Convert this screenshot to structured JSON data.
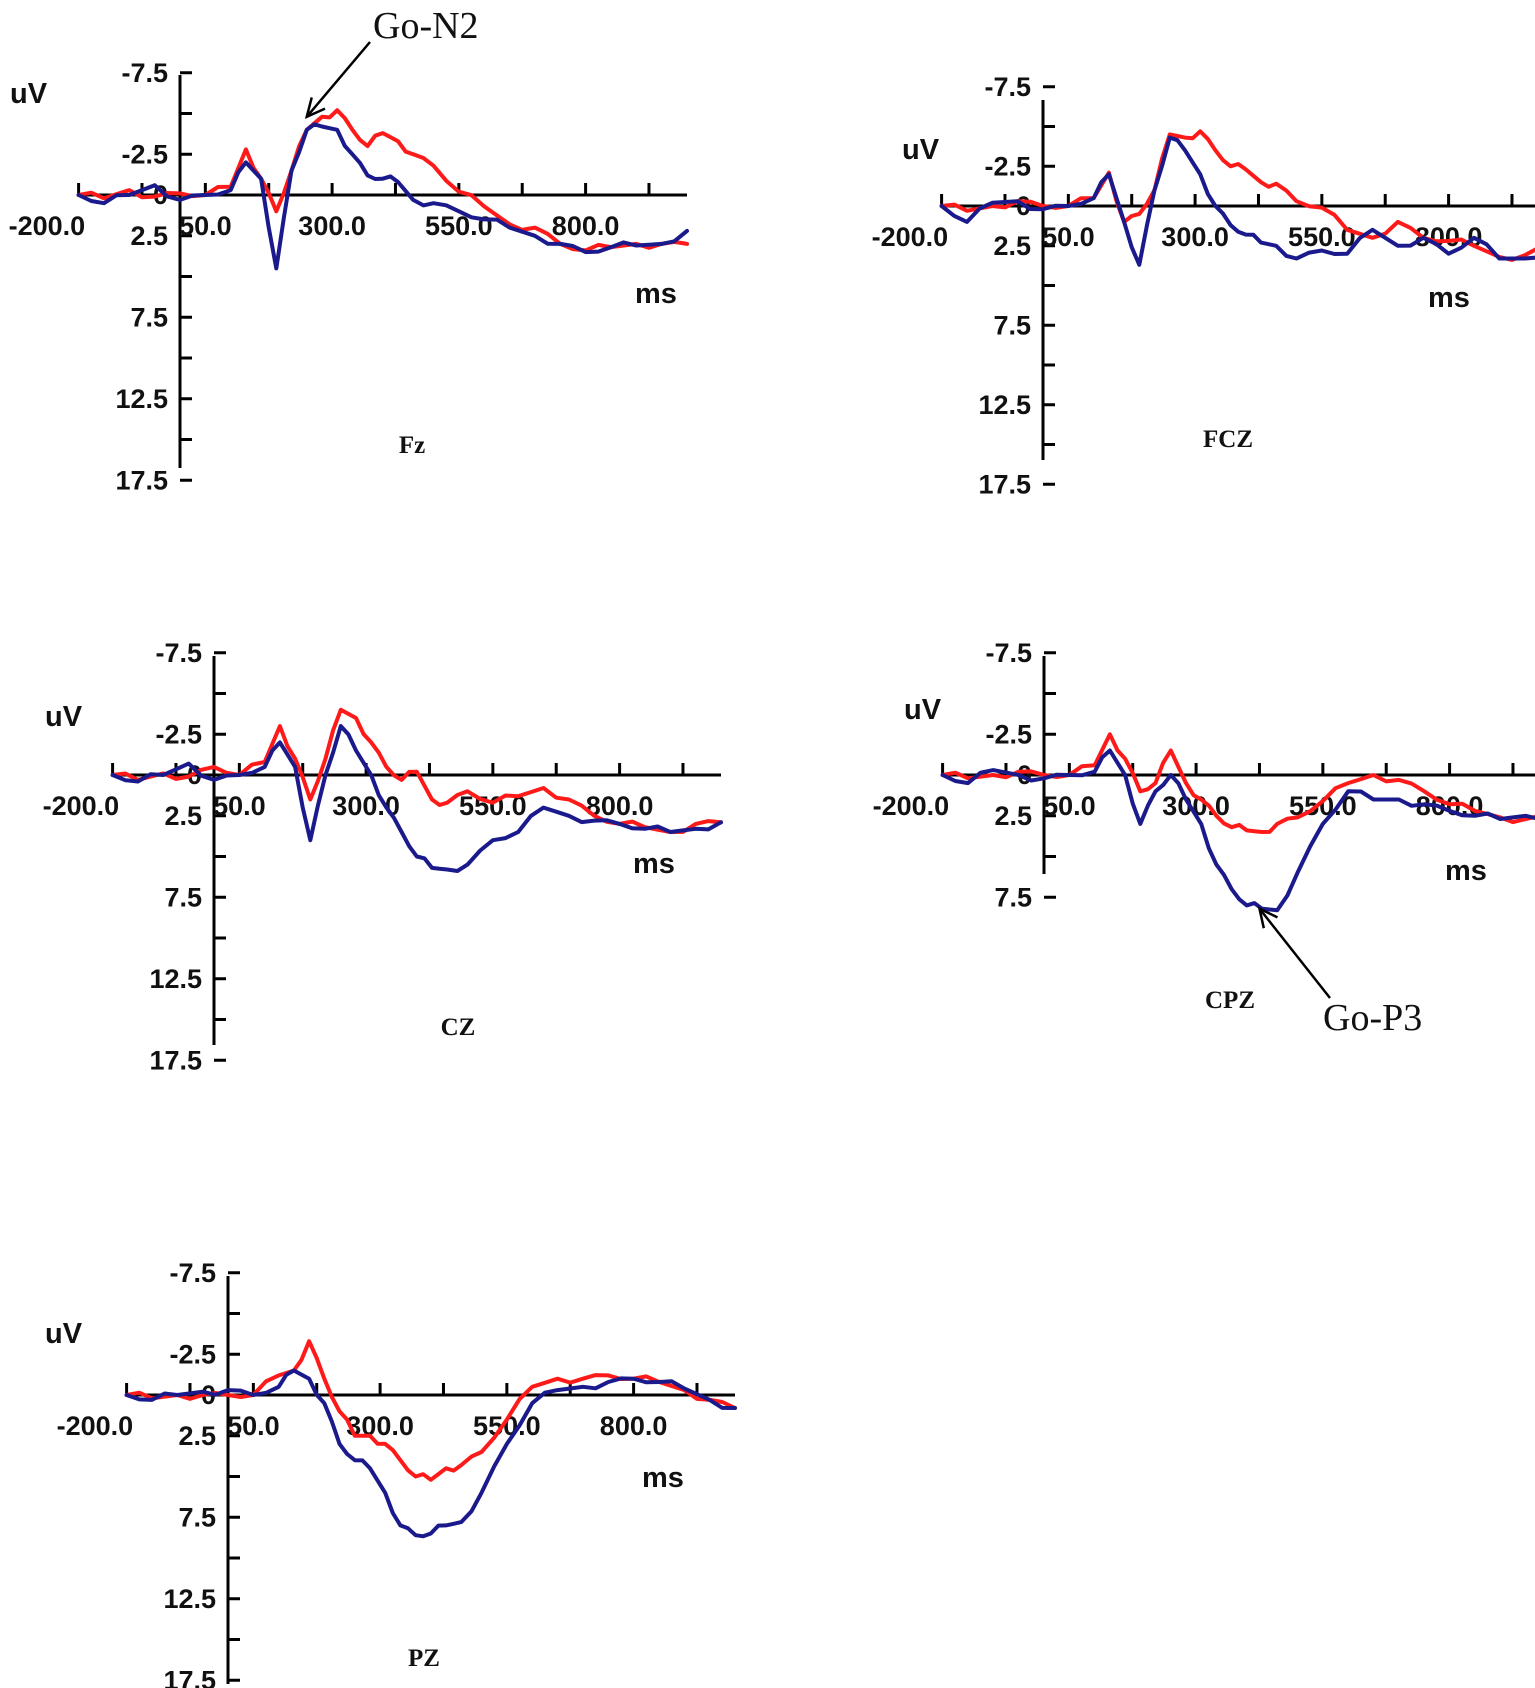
{
  "chart_data": [
    {
      "type": "line",
      "title": "Fz",
      "xlabel": "ms",
      "ylabel": "uV",
      "xlim": [
        -200,
        1000
      ],
      "ylim": [
        17.5,
        -7.5
      ],
      "x_ticks": [
        "-200.0",
        "50.0",
        "300.0",
        "550.0",
        "800.0"
      ],
      "x_tick_values": [
        -200,
        50,
        300,
        550,
        800
      ],
      "y_ticks": [
        "-7.5",
        "-2.5",
        "0",
        "2.5",
        "7.5",
        "12.5",
        "17.5"
      ],
      "y_tick_values": [
        -7.5,
        -2.5,
        0,
        2.5,
        7.5,
        12.5,
        17.5
      ],
      "annotation": {
        "text": "Go-N2",
        "x": 250,
        "y": -4.8
      },
      "colors": {
        "red": "#ff1a1a",
        "blue": "#1a1a8c"
      },
      "series": [
        {
          "color": "red",
          "x": [
            -200,
            -150,
            -100,
            -50,
            0,
            50,
            100,
            130,
            160,
            190,
            220,
            250,
            280,
            310,
            340,
            370,
            400,
            430,
            460,
            500,
            550,
            600,
            650,
            700,
            750,
            800,
            850,
            900,
            950,
            1000
          ],
          "y": [
            0,
            0.2,
            -0.3,
            0.1,
            -0.1,
            0,
            -0.5,
            -2.8,
            -1,
            1,
            -1.5,
            -4,
            -4.8,
            -5.2,
            -4,
            -3,
            -3.8,
            -3.3,
            -2.5,
            -1.8,
            -0.2,
            0.7,
            1.8,
            2,
            3,
            3.4,
            3.2,
            3,
            3,
            3
          ]
        },
        {
          "color": "blue",
          "x": [
            -200,
            -150,
            -100,
            -50,
            0,
            50,
            100,
            130,
            160,
            190,
            220,
            250,
            280,
            310,
            340,
            370,
            400,
            430,
            460,
            500,
            550,
            600,
            650,
            700,
            750,
            800,
            850,
            900,
            950,
            1000
          ],
          "y": [
            0,
            0.5,
            0,
            -0.6,
            0.3,
            0,
            -0.3,
            -2,
            -1,
            4.5,
            -1.5,
            -4,
            -4.2,
            -4,
            -2.5,
            -1.2,
            -1,
            -0.8,
            0.3,
            0.5,
            1,
            1.5,
            2,
            2.5,
            3,
            3.5,
            3.2,
            3.1,
            3,
            2.2
          ]
        }
      ]
    },
    {
      "type": "line",
      "title": "FCZ",
      "xlabel": "ms",
      "ylabel": "uV",
      "xlim": [
        -200,
        1000
      ],
      "ylim": [
        17.5,
        -7.5
      ],
      "x_ticks": [
        "-200.0",
        "50.0",
        "300.0",
        "550.0",
        "800.0"
      ],
      "x_tick_values": [
        -200,
        50,
        300,
        550,
        800
      ],
      "y_ticks": [
        "-7.5",
        "-2.5",
        "0",
        "2.5",
        "7.5",
        "12.5",
        "17.5"
      ],
      "y_tick_values": [
        -7.5,
        -2.5,
        0,
        2.5,
        7.5,
        12.5,
        17.5
      ],
      "colors": {
        "red": "#ff1a1a",
        "blue": "#1a1a8c"
      },
      "series": [
        {
          "color": "red",
          "x": [
            -200,
            -150,
            -100,
            -50,
            0,
            50,
            100,
            130,
            160,
            190,
            220,
            250,
            280,
            310,
            340,
            370,
            400,
            430,
            460,
            500,
            550,
            600,
            650,
            700,
            750,
            800,
            850,
            900,
            950,
            1000
          ],
          "y": [
            0,
            0.3,
            0,
            -0.3,
            0,
            0,
            -0.5,
            -2.1,
            1,
            0.5,
            -1,
            -4.5,
            -4.3,
            -4.7,
            -3.5,
            -2.5,
            -2.3,
            -1.5,
            -1.4,
            -0.3,
            0.1,
            1.5,
            2,
            1,
            2,
            2.2,
            2.5,
            3.2,
            3.1,
            2.5
          ]
        },
        {
          "color": "blue",
          "x": [
            -200,
            -150,
            -100,
            -50,
            0,
            50,
            100,
            130,
            160,
            190,
            220,
            250,
            280,
            310,
            340,
            370,
            400,
            430,
            460,
            500,
            550,
            600,
            650,
            700,
            750,
            800,
            850,
            900,
            950,
            1000
          ],
          "y": [
            0,
            1,
            -0.2,
            -0.3,
            0.2,
            0,
            -0.5,
            -2,
            1,
            3.7,
            -1,
            -4.3,
            -3.5,
            -2,
            0,
            1.2,
            1.8,
            2.3,
            2.5,
            3.3,
            2.8,
            3,
            1.5,
            2.5,
            2,
            3,
            2,
            3.3,
            3.3,
            2.7
          ]
        }
      ]
    },
    {
      "type": "line",
      "title": "CZ",
      "xlabel": "ms",
      "ylabel": "uV",
      "xlim": [
        -200,
        1000
      ],
      "ylim": [
        17.5,
        -7.5
      ],
      "x_ticks": [
        "-200.0",
        "50.0",
        "300.0",
        "550.0",
        "800.0"
      ],
      "x_tick_values": [
        -200,
        50,
        300,
        550,
        800
      ],
      "y_ticks": [
        "-7.5",
        "-2.5",
        "0",
        "2.5",
        "7.5",
        "12.5",
        "17.5"
      ],
      "y_tick_values": [
        -7.5,
        -2.5,
        0,
        2.5,
        7.5,
        12.5,
        17.5
      ],
      "colors": {
        "red": "#ff1a1a",
        "blue": "#1a1a8c"
      },
      "series": [
        {
          "color": "red",
          "x": [
            -200,
            -150,
            -100,
            -50,
            0,
            50,
            100,
            130,
            160,
            190,
            220,
            250,
            280,
            310,
            340,
            370,
            400,
            430,
            460,
            500,
            550,
            600,
            650,
            700,
            750,
            800,
            850,
            900,
            950,
            1000
          ],
          "y": [
            0,
            0.3,
            -0.1,
            0.1,
            -0.5,
            0,
            -0.8,
            -3,
            -1,
            1.5,
            -1,
            -4,
            -3.5,
            -2,
            -0.5,
            0.3,
            -0.2,
            1.5,
            1.7,
            1,
            1.7,
            1.3,
            0.8,
            1.5,
            2.5,
            3,
            3.2,
            3.5,
            3,
            2.9
          ]
        },
        {
          "color": "blue",
          "x": [
            -200,
            -150,
            -100,
            -50,
            0,
            50,
            100,
            130,
            160,
            190,
            220,
            250,
            280,
            310,
            340,
            370,
            400,
            430,
            460,
            500,
            550,
            600,
            650,
            700,
            750,
            800,
            850,
            900,
            950,
            1000
          ],
          "y": [
            0,
            0.4,
            0,
            -0.7,
            0.3,
            0,
            -0.5,
            -2,
            -0.5,
            4,
            0,
            -3,
            -1.5,
            0,
            2,
            3.5,
            5,
            5.7,
            5.8,
            5.5,
            4,
            3.5,
            2,
            2.5,
            2.8,
            3,
            3.3,
            3.5,
            3.3,
            2.9
          ]
        }
      ]
    },
    {
      "type": "line",
      "title": "CPZ",
      "xlabel": "ms",
      "ylabel": "uV",
      "xlim": [
        -200,
        1000
      ],
      "ylim": [
        17.5,
        -7.5
      ],
      "x_ticks": [
        "-200.0",
        "50.0",
        "300.0",
        "550.0",
        "800.0"
      ],
      "x_tick_values": [
        -200,
        50,
        300,
        550,
        800
      ],
      "y_ticks": [
        "-7.5",
        "-2.5",
        "0",
        "2.5",
        "7.5"
      ],
      "y_tick_values": [
        -7.5,
        -2.5,
        0,
        2.5,
        7.5
      ],
      "annotation": {
        "text": "Go-P3",
        "x": 425,
        "y": 8.2
      },
      "colors": {
        "red": "#ff1a1a",
        "blue": "#1a1a8c"
      },
      "series": [
        {
          "color": "red",
          "x": [
            -200,
            -150,
            -100,
            -50,
            0,
            50,
            100,
            130,
            160,
            190,
            220,
            250,
            280,
            310,
            340,
            370,
            400,
            430,
            460,
            500,
            550,
            600,
            650,
            700,
            750,
            800,
            850,
            900,
            950,
            1000
          ],
          "y": [
            0,
            0.2,
            0,
            -0.2,
            0,
            0,
            -0.6,
            -2.5,
            -1,
            1,
            0.5,
            -1.5,
            0.5,
            1.5,
            2.5,
            3.2,
            3.4,
            3.5,
            3,
            2.6,
            1.6,
            0.5,
            0,
            0.3,
            1,
            1.8,
            2.2,
            2.6,
            2.7,
            2.6
          ]
        },
        {
          "color": "blue",
          "x": [
            -200,
            -150,
            -100,
            -50,
            0,
            50,
            100,
            130,
            160,
            190,
            220,
            250,
            280,
            310,
            340,
            370,
            400,
            430,
            460,
            500,
            550,
            600,
            650,
            700,
            750,
            800,
            850,
            900,
            950,
            1000
          ],
          "y": [
            0,
            0.5,
            -0.3,
            0,
            0.2,
            0,
            -0.2,
            -1.5,
            0,
            3,
            1,
            0,
            1.5,
            3,
            5.5,
            7,
            8,
            8.2,
            8.3,
            6,
            3,
            1,
            1.5,
            1.5,
            1.8,
            2.2,
            2.5,
            2.7,
            2.5,
            2.4
          ]
        }
      ]
    },
    {
      "type": "line",
      "title": "PZ",
      "xlabel": "ms",
      "ylabel": "uV",
      "xlim": [
        -200,
        1000
      ],
      "ylim": [
        17.5,
        -7.5
      ],
      "x_ticks": [
        "-200.0",
        "50.0",
        "300.0",
        "550.0",
        "800.0"
      ],
      "x_tick_values": [
        -200,
        50,
        300,
        550,
        800
      ],
      "y_ticks": [
        "-7.5",
        "-2.5",
        "0",
        "2.5",
        "7.5",
        "12.5",
        "17.5"
      ],
      "y_tick_values": [
        -7.5,
        -2.5,
        0,
        2.5,
        7.5,
        12.5,
        17.5
      ],
      "colors": {
        "red": "#ff1a1a",
        "blue": "#1a1a8c"
      },
      "series": [
        {
          "color": "red",
          "x": [
            -200,
            -150,
            -100,
            -50,
            0,
            50,
            100,
            130,
            160,
            190,
            220,
            250,
            280,
            310,
            340,
            370,
            400,
            430,
            460,
            500,
            550,
            600,
            650,
            700,
            750,
            800,
            850,
            900,
            950,
            1000
          ],
          "y": [
            0,
            0.2,
            0,
            0,
            0,
            0,
            -1.2,
            -1.5,
            -3.3,
            -1,
            1,
            2.5,
            2.5,
            3,
            4,
            5,
            5.2,
            4.5,
            4.3,
            3.5,
            1.5,
            -0.5,
            -1,
            -1,
            -1.2,
            -1,
            -0.8,
            -0.3,
            0.3,
            0.8
          ]
        },
        {
          "color": "blue",
          "x": [
            -200,
            -150,
            -100,
            -50,
            0,
            50,
            100,
            130,
            160,
            190,
            220,
            250,
            280,
            310,
            340,
            370,
            400,
            430,
            460,
            500,
            550,
            600,
            650,
            700,
            750,
            800,
            850,
            900,
            950,
            1000
          ],
          "y": [
            0,
            0.3,
            0,
            -0.2,
            -0.3,
            0,
            -0.5,
            -1.5,
            -1,
            0.5,
            3,
            4,
            4.5,
            6,
            8,
            8.6,
            8.5,
            8,
            7.8,
            6,
            3,
            0.5,
            -0.3,
            -0.5,
            -0.8,
            -1,
            -0.8,
            -0.4,
            0.3,
            0.8
          ]
        }
      ]
    }
  ]
}
